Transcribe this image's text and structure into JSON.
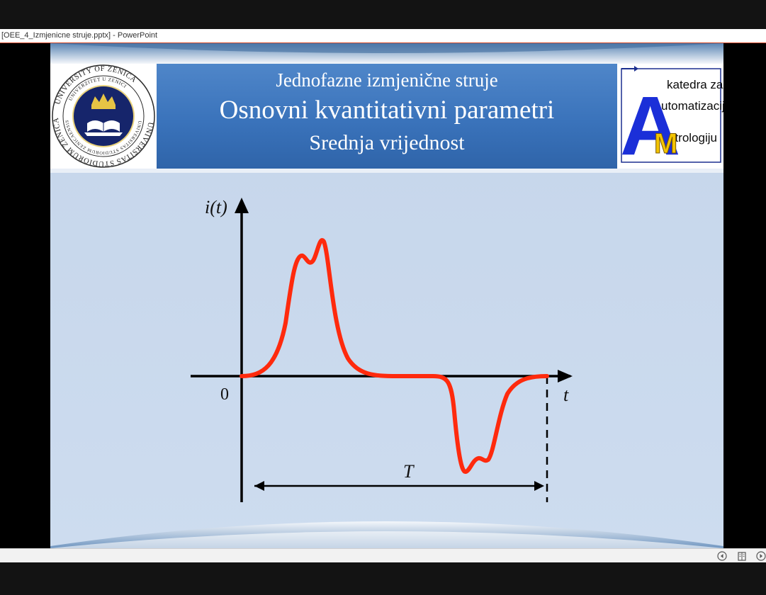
{
  "window": {
    "title": "[OEE_4_Izmjenicne struje.pptx] - PowerPoint"
  },
  "slide": {
    "header": {
      "line1": "Jednofazne izmjenične struje",
      "line2": "Osnovni kvantitativni parametri",
      "line3": "Srednja vrijednost"
    },
    "logo_left": {
      "outer_ring_text": "UNIVERSITY OF ZENICA",
      "outer_ring_bottom_text": "UNIVERSITAS STUDIORUM ZENICAENSIS",
      "inner_ring_text": "UNIVERZITET U ZENICI",
      "inner_ring_bottom_text": "UNIVERSITAS STUDIORUM ZENICAENSIS"
    },
    "logo_right": {
      "line1": "katedra za",
      "line2": "utomatizaciju i",
      "line3": "etrologiju",
      "big_a": "A",
      "big_m": "M"
    },
    "figure": {
      "y_axis_label": "i(t)",
      "x_axis_label": "t",
      "origin_label": "0",
      "period_label": "T"
    }
  },
  "colors": {
    "slide_background": "#c9d8eb",
    "header_band": "#3a73bb",
    "waveform": "#ff2a0d",
    "axis": "#000000"
  },
  "statusbar": {
    "buttons": [
      "prev-slide-icon",
      "reading-view-icon",
      "next-slide-icon"
    ]
  }
}
